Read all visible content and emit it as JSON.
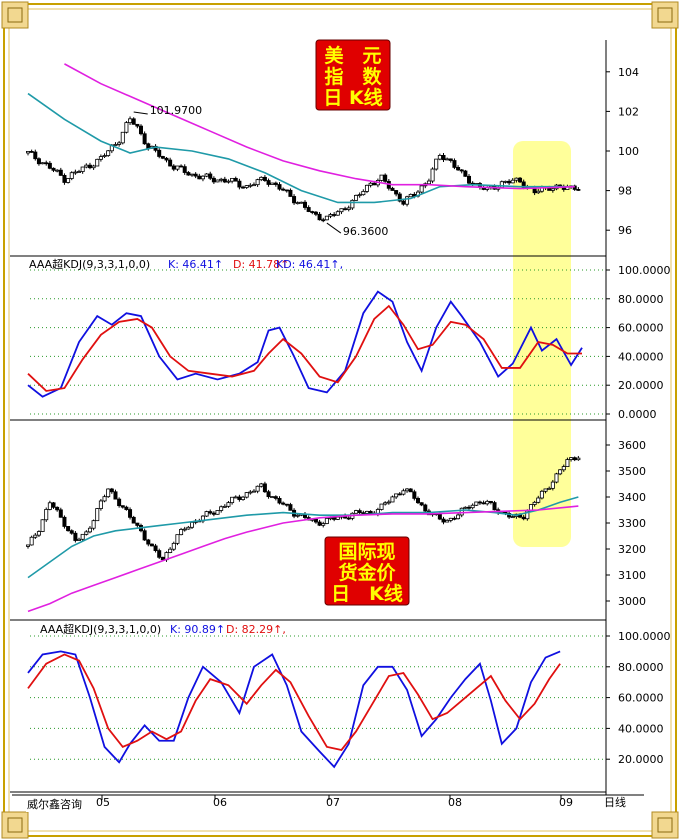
{
  "brand": "威尔鑫咨询",
  "x_axis_unit": "日线",
  "x_months": [
    "05",
    "06",
    "07",
    "08",
    "09"
  ],
  "stamps": {
    "top": [
      "美　元",
      "指　数",
      "日 K线"
    ],
    "bottom": [
      "国际现",
      "货金价",
      "日　K线"
    ]
  },
  "colors": {
    "candle_up": "#ffffff",
    "candle_down": "#000000",
    "ma_short": "#1f9aa8",
    "ma_long": "#e020e0",
    "k_line": "#1010e0",
    "d_line": "#e01010",
    "highlight": "#ffff88",
    "stamp_bg": "#e00000",
    "stamp_text": "#ffff00"
  },
  "chart_data": [
    {
      "type": "candlestick",
      "name": "usd_index_daily",
      "ylim": [
        95,
        105
      ],
      "yticks": [
        "96",
        "98",
        "100",
        "102",
        "104"
      ],
      "annotations": [
        {
          "text": "101.9700",
          "x": "2005-07",
          "y": 101.97
        },
        {
          "text": "96.3600",
          "x": "2006-09",
          "y": 96.36
        }
      ],
      "close_path": [
        [
          0,
          99.9
        ],
        [
          5,
          99.3
        ],
        [
          10,
          98.6
        ],
        [
          15,
          99.1
        ],
        [
          20,
          99.6
        ],
        [
          25,
          100.6
        ],
        [
          28,
          101.6
        ],
        [
          30,
          101.2
        ],
        [
          33,
          100.2
        ],
        [
          36,
          99.8
        ],
        [
          40,
          99.2
        ],
        [
          45,
          98.8
        ],
        [
          50,
          98.6
        ],
        [
          55,
          98.5
        ],
        [
          60,
          98.2
        ],
        [
          65,
          98.6
        ],
        [
          70,
          98.0
        ],
        [
          75,
          97.3
        ],
        [
          78,
          96.8
        ],
        [
          82,
          96.6
        ],
        [
          86,
          97.0
        ],
        [
          90,
          97.6
        ],
        [
          94,
          98.4
        ],
        [
          97,
          98.6
        ],
        [
          100,
          98.0
        ],
        [
          103,
          97.4
        ],
        [
          106,
          97.8
        ],
        [
          110,
          98.6
        ],
        [
          113,
          99.8
        ],
        [
          116,
          99.5
        ],
        [
          119,
          98.8
        ],
        [
          122,
          98.4
        ],
        [
          126,
          98.0
        ],
        [
          130,
          98.4
        ],
        [
          135,
          98.5
        ],
        [
          139,
          97.9
        ],
        [
          143,
          98.2
        ],
        [
          147,
          98.1
        ],
        [
          150,
          98.2
        ]
      ],
      "ma_short": [
        [
          0,
          102.9
        ],
        [
          10,
          101.6
        ],
        [
          20,
          100.5
        ],
        [
          28,
          99.9
        ],
        [
          35,
          100.2
        ],
        [
          45,
          100.0
        ],
        [
          55,
          99.6
        ],
        [
          65,
          98.9
        ],
        [
          75,
          98.0
        ],
        [
          85,
          97.4
        ],
        [
          95,
          97.4
        ],
        [
          105,
          97.6
        ],
        [
          113,
          98.2
        ],
        [
          122,
          98.3
        ],
        [
          135,
          98.2
        ],
        [
          150,
          98.2
        ]
      ],
      "ma_long": [
        [
          10,
          104.4
        ],
        [
          20,
          103.4
        ],
        [
          30,
          102.6
        ],
        [
          40,
          101.8
        ],
        [
          50,
          101.0
        ],
        [
          60,
          100.2
        ],
        [
          70,
          99.5
        ],
        [
          80,
          99.0
        ],
        [
          90,
          98.6
        ],
        [
          100,
          98.3
        ],
        [
          110,
          98.3
        ],
        [
          120,
          98.2
        ],
        [
          135,
          98.1
        ],
        [
          150,
          98.2
        ]
      ]
    },
    {
      "type": "line",
      "name": "usd_kdj",
      "legend": "AAA超KDJ(9,3,3,1,0,0)",
      "values_text": {
        "K": "K: 46.41↑",
        "D": "D: 41.78↑",
        "KD": "KD: 46.41↑,"
      },
      "ylim": [
        0,
        100
      ],
      "yticks": [
        "0.0000",
        "20.0000",
        "40.0000",
        "60.0000",
        "80.0000",
        "100.0000"
      ],
      "K": [
        [
          0,
          20
        ],
        [
          4,
          12
        ],
        [
          9,
          18
        ],
        [
          14,
          50
        ],
        [
          19,
          68
        ],
        [
          23,
          62
        ],
        [
          27,
          70
        ],
        [
          31,
          68
        ],
        [
          36,
          40
        ],
        [
          41,
          24
        ],
        [
          46,
          28
        ],
        [
          52,
          24
        ],
        [
          58,
          28
        ],
        [
          63,
          36
        ],
        [
          66,
          58
        ],
        [
          69,
          60
        ],
        [
          73,
          40
        ],
        [
          77,
          18
        ],
        [
          82,
          15
        ],
        [
          87,
          30
        ],
        [
          92,
          70
        ],
        [
          96,
          85
        ],
        [
          100,
          78
        ],
        [
          104,
          50
        ],
        [
          108,
          30
        ],
        [
          112,
          60
        ],
        [
          116,
          78
        ],
        [
          119,
          68
        ],
        [
          124,
          50
        ],
        [
          129,
          26
        ],
        [
          133,
          35
        ],
        [
          138,
          60
        ],
        [
          141,
          44
        ],
        [
          145,
          52
        ],
        [
          149,
          34
        ],
        [
          152,
          46
        ]
      ],
      "D": [
        [
          0,
          28
        ],
        [
          5,
          16
        ],
        [
          10,
          18
        ],
        [
          15,
          38
        ],
        [
          20,
          55
        ],
        [
          25,
          64
        ],
        [
          30,
          66
        ],
        [
          34,
          60
        ],
        [
          39,
          40
        ],
        [
          44,
          30
        ],
        [
          50,
          28
        ],
        [
          56,
          26
        ],
        [
          62,
          30
        ],
        [
          66,
          42
        ],
        [
          70,
          52
        ],
        [
          75,
          42
        ],
        [
          80,
          26
        ],
        [
          85,
          22
        ],
        [
          90,
          40
        ],
        [
          95,
          66
        ],
        [
          99,
          75
        ],
        [
          103,
          62
        ],
        [
          107,
          45
        ],
        [
          111,
          48
        ],
        [
          116,
          64
        ],
        [
          120,
          62
        ],
        [
          125,
          52
        ],
        [
          130,
          32
        ],
        [
          135,
          32
        ],
        [
          140,
          50
        ],
        [
          144,
          48
        ],
        [
          148,
          42
        ],
        [
          152,
          42
        ]
      ]
    },
    {
      "type": "candlestick",
      "name": "spot_gold_daily",
      "ylim": [
        2950,
        3650
      ],
      "yticks": [
        "3000",
        "3100",
        "3200",
        "3300",
        "3400",
        "3500",
        "3600"
      ],
      "close_path": [
        [
          0,
          3210
        ],
        [
          3,
          3280
        ],
        [
          6,
          3380
        ],
        [
          8,
          3340
        ],
        [
          10,
          3300
        ],
        [
          13,
          3230
        ],
        [
          16,
          3260
        ],
        [
          19,
          3350
        ],
        [
          22,
          3430
        ],
        [
          25,
          3380
        ],
        [
          28,
          3320
        ],
        [
          31,
          3270
        ],
        [
          34,
          3200
        ],
        [
          37,
          3160
        ],
        [
          40,
          3230
        ],
        [
          43,
          3280
        ],
        [
          46,
          3310
        ],
        [
          49,
          3330
        ],
        [
          52,
          3350
        ],
        [
          55,
          3380
        ],
        [
          58,
          3400
        ],
        [
          61,
          3420
        ],
        [
          64,
          3440
        ],
        [
          67,
          3400
        ],
        [
          70,
          3370
        ],
        [
          73,
          3340
        ],
        [
          76,
          3320
        ],
        [
          79,
          3300
        ],
        [
          82,
          3310
        ],
        [
          85,
          3320
        ],
        [
          88,
          3330
        ],
        [
          91,
          3340
        ],
        [
          94,
          3340
        ],
        [
          97,
          3360
        ],
        [
          100,
          3400
        ],
        [
          103,
          3430
        ],
        [
          106,
          3400
        ],
        [
          109,
          3350
        ],
        [
          112,
          3320
        ],
        [
          115,
          3310
        ],
        [
          118,
          3330
        ],
        [
          121,
          3370
        ],
        [
          124,
          3380
        ],
        [
          127,
          3370
        ],
        [
          130,
          3340
        ],
        [
          133,
          3320
        ],
        [
          136,
          3330
        ],
        [
          139,
          3380
        ],
        [
          142,
          3430
        ],
        [
          145,
          3480
        ],
        [
          148,
          3540
        ],
        [
          151,
          3560
        ]
      ],
      "ma_short": [
        [
          0,
          3090
        ],
        [
          6,
          3150
        ],
        [
          12,
          3210
        ],
        [
          18,
          3250
        ],
        [
          24,
          3270
        ],
        [
          30,
          3280
        ],
        [
          36,
          3290
        ],
        [
          42,
          3300
        ],
        [
          48,
          3310
        ],
        [
          54,
          3320
        ],
        [
          60,
          3330
        ],
        [
          70,
          3340
        ],
        [
          80,
          3330
        ],
        [
          90,
          3330
        ],
        [
          100,
          3340
        ],
        [
          110,
          3340
        ],
        [
          120,
          3350
        ],
        [
          128,
          3340
        ],
        [
          134,
          3330
        ],
        [
          140,
          3350
        ],
        [
          146,
          3380
        ],
        [
          151,
          3400
        ]
      ],
      "ma_long": [
        [
          0,
          2960
        ],
        [
          6,
          2990
        ],
        [
          12,
          3030
        ],
        [
          18,
          3060
        ],
        [
          24,
          3090
        ],
        [
          30,
          3120
        ],
        [
          36,
          3150
        ],
        [
          42,
          3180
        ],
        [
          48,
          3210
        ],
        [
          54,
          3240
        ],
        [
          60,
          3265
        ],
        [
          70,
          3300
        ],
        [
          80,
          3320
        ],
        [
          90,
          3330
        ],
        [
          100,
          3335
        ],
        [
          110,
          3335
        ],
        [
          120,
          3340
        ],
        [
          130,
          3345
        ],
        [
          140,
          3350
        ],
        [
          151,
          3365
        ]
      ]
    },
    {
      "type": "line",
      "name": "gold_kdj",
      "legend": "AAA超KDJ(9,3,3,1,0,0)",
      "values_text": {
        "K": "K: 90.89↑",
        "D": "D: 82.29↑,"
      },
      "ylim": [
        0,
        100
      ],
      "yticks": [
        "20.0000",
        "40.0000",
        "60.0000",
        "80.0000",
        "100.0000"
      ],
      "K": [
        [
          0,
          76
        ],
        [
          4,
          88
        ],
        [
          9,
          90
        ],
        [
          13,
          88
        ],
        [
          17,
          60
        ],
        [
          21,
          28
        ],
        [
          25,
          18
        ],
        [
          28,
          30
        ],
        [
          32,
          42
        ],
        [
          36,
          32
        ],
        [
          40,
          32
        ],
        [
          44,
          60
        ],
        [
          48,
          80
        ],
        [
          53,
          70
        ],
        [
          58,
          50
        ],
        [
          62,
          80
        ],
        [
          67,
          88
        ],
        [
          71,
          68
        ],
        [
          75,
          38
        ],
        [
          80,
          25
        ],
        [
          84,
          15
        ],
        [
          88,
          30
        ],
        [
          92,
          68
        ],
        [
          96,
          80
        ],
        [
          100,
          80
        ],
        [
          104,
          65
        ],
        [
          108,
          35
        ],
        [
          112,
          46
        ],
        [
          116,
          60
        ],
        [
          120,
          72
        ],
        [
          124,
          82
        ],
        [
          127,
          58
        ],
        [
          130,
          30
        ],
        [
          134,
          40
        ],
        [
          138,
          70
        ],
        [
          142,
          86
        ],
        [
          146,
          90
        ]
      ],
      "D": [
        [
          0,
          66
        ],
        [
          5,
          82
        ],
        [
          10,
          88
        ],
        [
          14,
          84
        ],
        [
          18,
          66
        ],
        [
          22,
          40
        ],
        [
          26,
          28
        ],
        [
          30,
          32
        ],
        [
          34,
          38
        ],
        [
          38,
          33
        ],
        [
          42,
          38
        ],
        [
          46,
          58
        ],
        [
          50,
          72
        ],
        [
          55,
          68
        ],
        [
          60,
          56
        ],
        [
          64,
          68
        ],
        [
          68,
          78
        ],
        [
          72,
          70
        ],
        [
          77,
          48
        ],
        [
          82,
          28
        ],
        [
          86,
          26
        ],
        [
          90,
          38
        ],
        [
          95,
          58
        ],
        [
          99,
          74
        ],
        [
          103,
          76
        ],
        [
          107,
          62
        ],
        [
          111,
          46
        ],
        [
          115,
          50
        ],
        [
          119,
          58
        ],
        [
          123,
          66
        ],
        [
          127,
          74
        ],
        [
          131,
          58
        ],
        [
          135,
          46
        ],
        [
          139,
          56
        ],
        [
          143,
          72
        ],
        [
          146,
          82
        ]
      ]
    }
  ]
}
